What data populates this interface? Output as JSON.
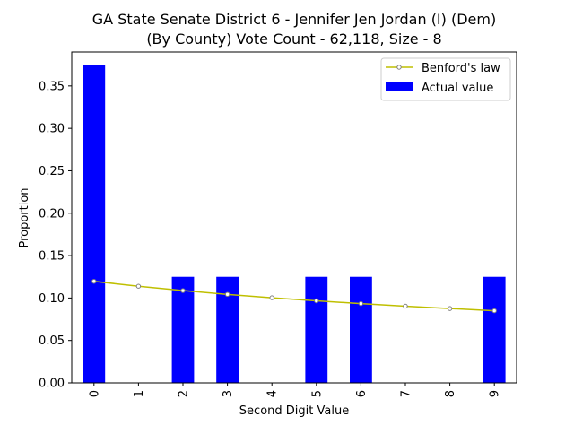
{
  "chart_data": {
    "type": "bar",
    "title_line1": "GA State Senate District 6 - Jennifer Jen Jordan (I) (Dem)",
    "title_line2": "(By County) Vote Count - 62,118, Size - 8",
    "xlabel": "Second Digit Value",
    "ylabel": "Proportion",
    "categories": [
      "0",
      "1",
      "2",
      "3",
      "4",
      "5",
      "6",
      "7",
      "8",
      "9"
    ],
    "ylim": [
      0,
      0.39
    ],
    "yticks": [
      0.0,
      0.05,
      0.1,
      0.15,
      0.2,
      0.25,
      0.3,
      0.35
    ],
    "ytick_labels": [
      "0.00",
      "0.05",
      "0.10",
      "0.15",
      "0.20",
      "0.25",
      "0.30",
      "0.35"
    ],
    "grid": false,
    "legend_position": "top-right",
    "series": [
      {
        "name": "Benford's law",
        "kind": "line",
        "color": "#bfbf00",
        "marker_color": "#808080",
        "values": [
          0.1197,
          0.1139,
          0.1088,
          0.1043,
          0.1003,
          0.0967,
          0.0934,
          0.0904,
          0.0876,
          0.085
        ]
      },
      {
        "name": "Actual value",
        "kind": "bar",
        "color": "#0000ff",
        "values": [
          0.375,
          0,
          0.125,
          0.125,
          0,
          0.125,
          0.125,
          0,
          0,
          0.125
        ]
      }
    ]
  }
}
